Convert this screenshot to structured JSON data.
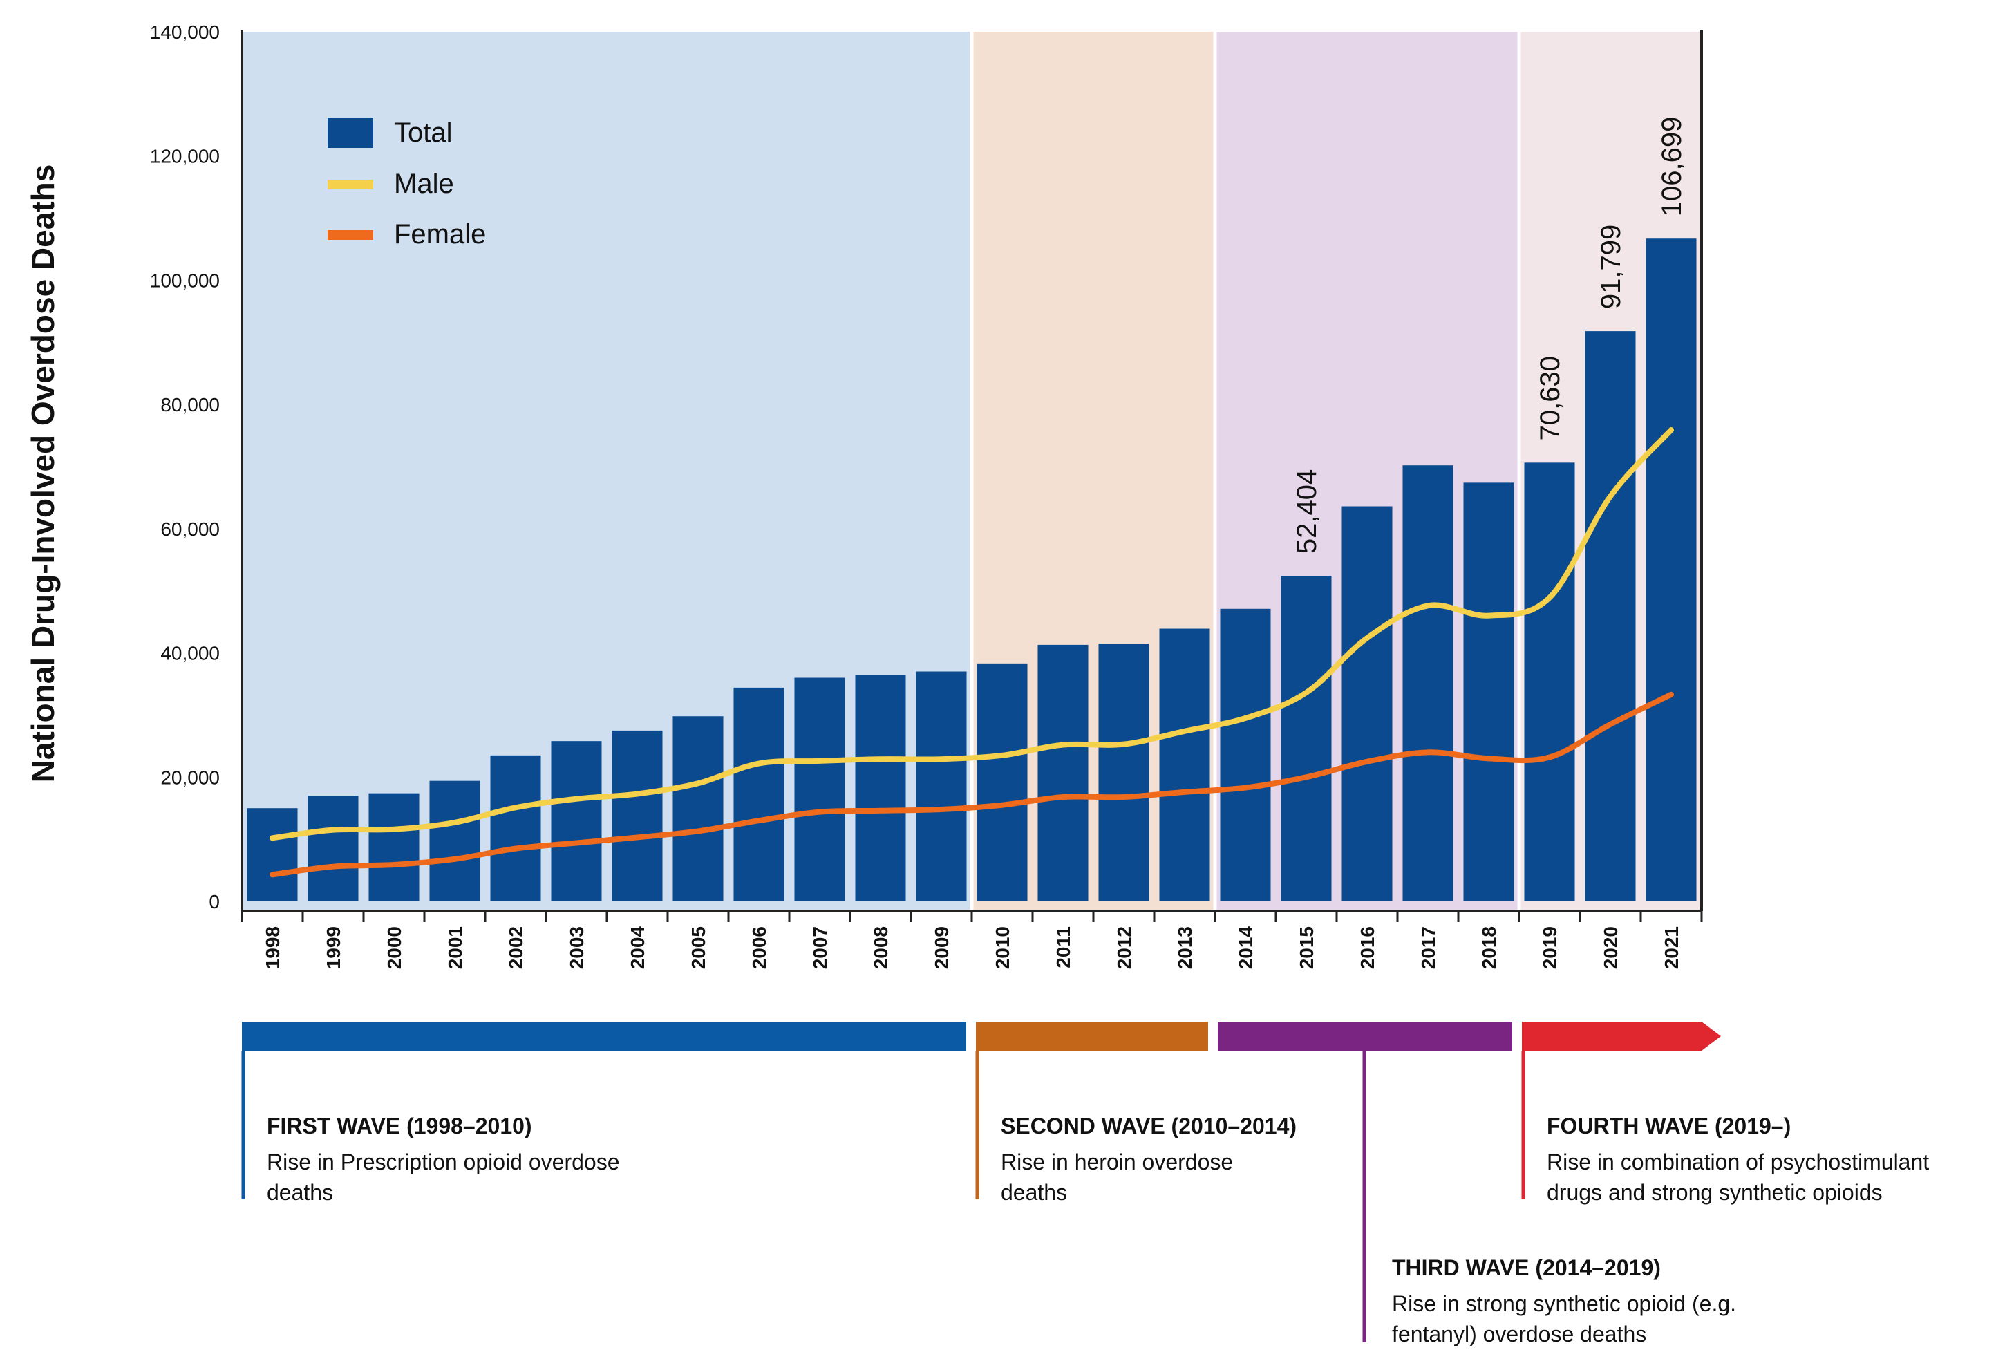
{
  "chart_data": {
    "type": "bar",
    "ylabel": "National Drug-Involved Overdose Deaths",
    "ylim": [
      0,
      140000
    ],
    "yticks": [
      0,
      20000,
      40000,
      60000,
      80000,
      100000,
      120000,
      140000
    ],
    "ytick_labels": [
      "0",
      "20,000",
      "40,000",
      "60,000",
      "80,000",
      "100,000",
      "120,000",
      "140,000"
    ],
    "categories": [
      "1998",
      "1999",
      "2000",
      "2001",
      "2002",
      "2003",
      "2004",
      "2005",
      "2006",
      "2007",
      "2008",
      "2009",
      "2010",
      "2011",
      "2012",
      "2013",
      "2014",
      "2015",
      "2016",
      "2017",
      "2018",
      "2019",
      "2020",
      "2021"
    ],
    "series": [
      {
        "name": "Total",
        "kind": "bar",
        "color": "#0b4a8f",
        "values": [
          15000,
          17000,
          17400,
          19400,
          23500,
          25800,
          27500,
          29800,
          34400,
          36000,
          36500,
          37000,
          38300,
          41300,
          41500,
          43900,
          47100,
          52404,
          63600,
          70200,
          67400,
          70630,
          91799,
          106699
        ]
      },
      {
        "name": "Male",
        "kind": "line",
        "color": "#f5d04a",
        "values": [
          10200,
          11500,
          11600,
          12700,
          15100,
          16500,
          17300,
          19000,
          22200,
          22600,
          22900,
          22900,
          23500,
          25200,
          25300,
          27400,
          29500,
          33600,
          42400,
          47600,
          46000,
          48900,
          65200,
          75900
        ]
      },
      {
        "name": "Female",
        "kind": "line",
        "color": "#ee6a1c",
        "values": [
          4300,
          5600,
          5900,
          6800,
          8500,
          9400,
          10300,
          11300,
          13000,
          14400,
          14600,
          14800,
          15500,
          16800,
          16800,
          17600,
          18300,
          20000,
          22500,
          24000,
          23000,
          23200,
          28500,
          33300
        ]
      }
    ],
    "data_labels": [
      {
        "category": "2015",
        "text": "52,404"
      },
      {
        "category": "2019",
        "text": "70,630"
      },
      {
        "category": "2020",
        "text": "91,799"
      },
      {
        "category": "2021",
        "text": "106,699"
      }
    ],
    "legend": {
      "position": "top-left",
      "items": [
        "Total",
        "Male",
        "Female"
      ]
    },
    "eras": [
      {
        "start": "1998",
        "end": "2009",
        "color": "#cfdff0"
      },
      {
        "start": "2010",
        "end": "2013",
        "color": "#f3e0d2"
      },
      {
        "start": "2014",
        "end": "2018",
        "color": "#e6d6e9"
      },
      {
        "start": "2019",
        "end": "2021",
        "color": "#f3e6e9"
      }
    ],
    "waves": [
      {
        "title": "FIRST WAVE (1998–2010)",
        "desc1": "Rise in Prescription opioid overdose",
        "desc2": "deaths",
        "start": "1998",
        "end": "2009",
        "color": "#0b5aa5"
      },
      {
        "title": "SECOND WAVE (2010–2014)",
        "desc1": "Rise in heroin overdose",
        "desc2": "deaths",
        "start": "2010",
        "end": "2013",
        "color": "#c4661a"
      },
      {
        "title": "THIRD WAVE (2014–2019)",
        "desc1": "Rise in strong synthetic opioid (e.g.",
        "desc2": "fentanyl) overdose deaths",
        "start": "2014",
        "end": "2018",
        "color": "#7a2582"
      },
      {
        "title": "FOURTH WAVE (2019–)",
        "desc1": "Rise in combination of psychostimulant",
        "desc2": "drugs and strong synthetic opioids",
        "start": "2019",
        "end": "2021",
        "color": "#e0272f"
      }
    ]
  }
}
